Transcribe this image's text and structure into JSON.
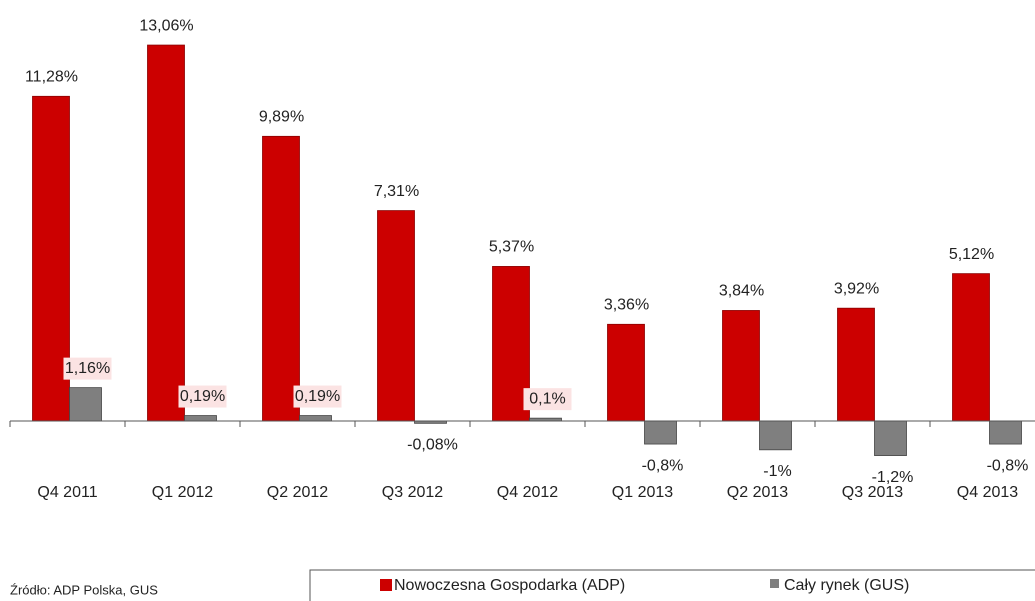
{
  "chart_data": {
    "type": "bar",
    "categories": [
      "Q4 2011",
      "Q1 2012",
      "Q2 2012",
      "Q3 2012",
      "Q4 2012",
      "Q1 2013",
      "Q2 2013",
      "Q3 2013",
      "Q4 2013"
    ],
    "series": [
      {
        "name": "Nowoczesna Gospodarka (ADP)",
        "color": "#cc0000",
        "values": [
          11.28,
          13.06,
          9.89,
          7.31,
          5.37,
          3.36,
          3.84,
          3.92,
          5.12
        ],
        "value_labels": [
          "11,28%",
          "13,06%",
          "9,89%",
          "7,31%",
          "5,37%",
          "3,36%",
          "3,84%",
          "3,92%",
          "5,12%"
        ]
      },
      {
        "name": "Cały rynek (GUS)",
        "color": "#7f7f7f",
        "values": [
          1.16,
          0.19,
          0.19,
          -0.08,
          0.1,
          -0.8,
          -1,
          -1.2,
          -0.8
        ],
        "value_labels": [
          "1,16%",
          "0,19%",
          "0,19%",
          "-0,08%",
          "0,1%",
          "-0,8%",
          "-1%",
          "-1,2%",
          "-0,8%"
        ]
      }
    ],
    "ylim": [
      -2,
      14
    ],
    "source": "Źródło: ADP Polska, GUS"
  }
}
